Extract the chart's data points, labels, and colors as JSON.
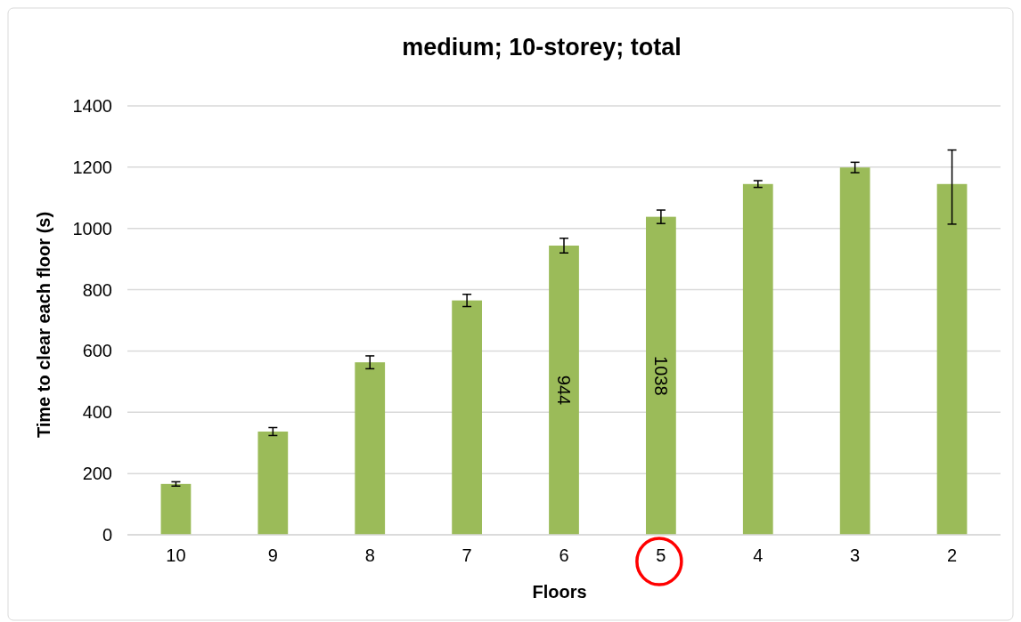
{
  "chart_data": {
    "type": "bar",
    "title": "medium; 10-storey; total",
    "xlabel": "Floors",
    "ylabel": "Time to clear each floor (s)",
    "categories": [
      "10",
      "9",
      "8",
      "7",
      "6",
      "5",
      "4",
      "3",
      "2"
    ],
    "values": [
      166,
      337,
      563,
      765,
      944,
      1038,
      1145,
      1199,
      1145
    ],
    "errors": [
      7,
      13,
      21,
      20,
      24,
      22,
      11,
      17,
      [
        1014,
        1256
      ]
    ],
    "value_labels": [
      null,
      null,
      null,
      null,
      "944",
      "1038",
      null,
      null,
      null
    ],
    "color": "#9bbb59",
    "ylim": [
      0,
      1400
    ],
    "yticks": [
      0,
      200,
      400,
      600,
      800,
      1000,
      1200,
      1400
    ],
    "grid": "y"
  }
}
